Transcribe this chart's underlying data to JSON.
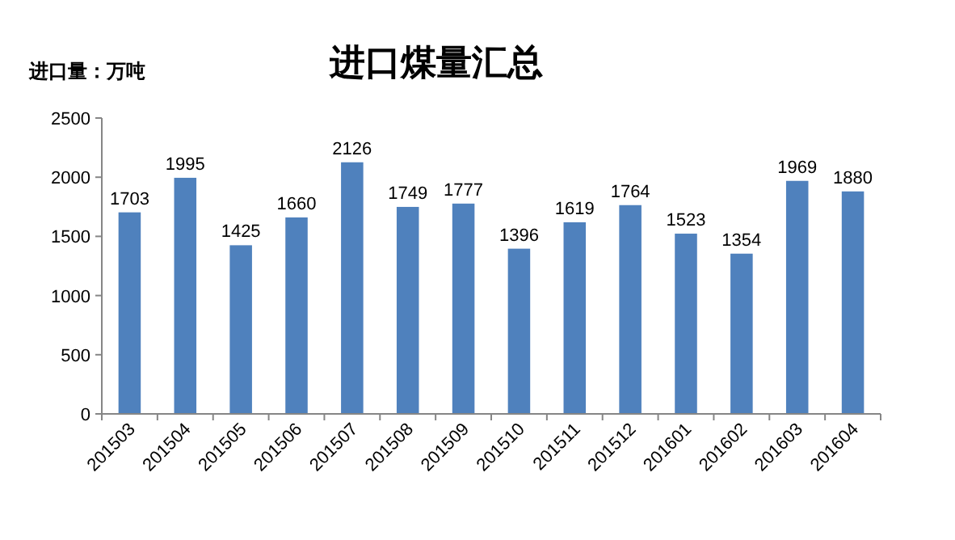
{
  "chart_data": {
    "type": "bar",
    "title": "进口煤量汇总",
    "ylabel": "进口量：万吨",
    "categories": [
      "201503",
      "201504",
      "201505",
      "201506",
      "201507",
      "201508",
      "201509",
      "201510",
      "201511",
      "201512",
      "201601",
      "201602",
      "201603",
      "201604"
    ],
    "values": [
      1703,
      1995,
      1425,
      1660,
      2126,
      1749,
      1777,
      1396,
      1619,
      1764,
      1523,
      1354,
      1969,
      1880
    ],
    "color": "#4f81bd",
    "ylim": [
      0,
      2500
    ],
    "yticks": [
      0,
      500,
      1000,
      1500,
      2000,
      2500
    ],
    "data_labels": true
  }
}
